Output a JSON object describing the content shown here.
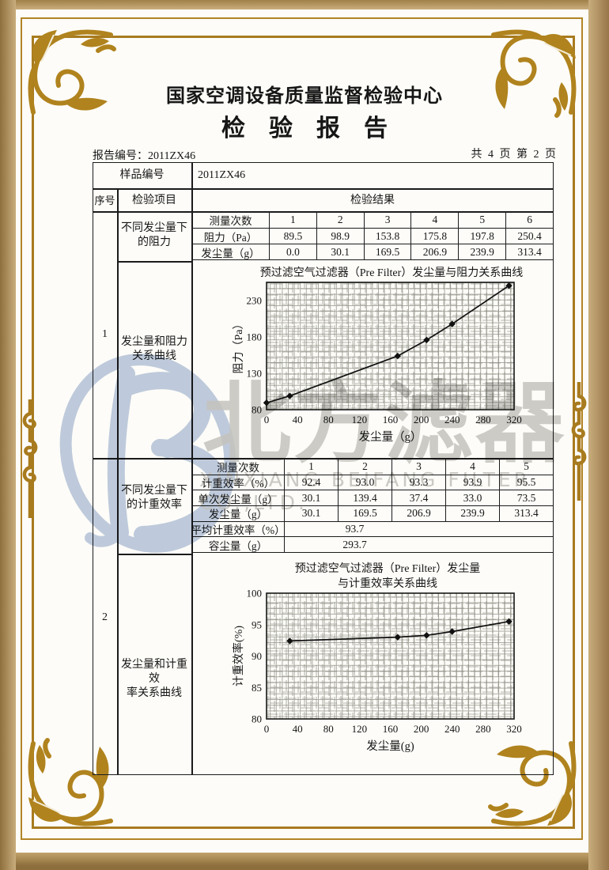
{
  "header": {
    "center_name": "国家空调设备质量监督检验中心",
    "report_title": "检验报告",
    "report_no": "报告编号：2011ZX46",
    "page_info": "共 4 页 第 2 页"
  },
  "sample_row": {
    "label": "样品编号",
    "value": "2011ZX46"
  },
  "columns": {
    "seq": "序号",
    "item": "检验项目",
    "result": "检验结果"
  },
  "section1": {
    "seq": "1",
    "item_top": "不同发尘量下\n的阻力",
    "item_bottom": "发尘量和阻力\n关系曲线",
    "table": {
      "rows": [
        {
          "label": "测量次数",
          "values": [
            "1",
            "2",
            "3",
            "4",
            "5",
            "6"
          ]
        },
        {
          "label": "阻力（Pa）",
          "values": [
            "89.5",
            "98.9",
            "153.8",
            "175.8",
            "197.8",
            "250.4"
          ]
        },
        {
          "label": "发尘量（g）",
          "values": [
            "0.0",
            "30.1",
            "169.5",
            "206.9",
            "239.9",
            "313.4"
          ]
        }
      ]
    }
  },
  "section2": {
    "seq": "2",
    "item_top": "不同发尘量下\n的计重效率",
    "item_bottom": "发尘量和计重效\n率关系曲线",
    "table": {
      "rows": [
        {
          "label": "测量次数",
          "values": [
            "1",
            "2",
            "3",
            "4",
            "5"
          ]
        },
        {
          "label": "计重效率（%）",
          "values": [
            "92.4",
            "93.0",
            "93.3",
            "93.9",
            "95.5"
          ]
        },
        {
          "label": "单次发尘量（g）",
          "values": [
            "30.1",
            "139.4",
            "37.4",
            "33.0",
            "73.5"
          ]
        },
        {
          "label": "发尘量（g）",
          "values": [
            "30.1",
            "169.5",
            "206.9",
            "239.9",
            "313.4"
          ]
        }
      ],
      "summary": [
        {
          "label": "平均计重效率（%）",
          "value": "93.7"
        },
        {
          "label": "容尘量（g）",
          "value": "293.7"
        }
      ]
    }
  },
  "chart_data": [
    {
      "type": "line",
      "title": "预过滤空气过滤器（Pre Filter）发尘量与阻力关系曲线",
      "xlabel": "发尘量（g）",
      "ylabel": "阻力（Pa）",
      "x": [
        0,
        30.1,
        169.5,
        206.9,
        239.9,
        313.4
      ],
      "y": [
        89.5,
        98.9,
        153.8,
        175.8,
        197.8,
        250.4
      ],
      "xticks": [
        0,
        40,
        80,
        120,
        160,
        200,
        240,
        280,
        320
      ],
      "yticks": [
        80,
        130,
        180,
        230
      ],
      "xlim": [
        0,
        320
      ],
      "ylim": [
        80,
        255
      ],
      "grid": "fine-crosshatch",
      "legend": "none"
    },
    {
      "type": "line",
      "title": "预过滤空气过滤器（Pre Filter）发尘量\n与计重效率关系曲线",
      "xlabel": "发尘量(g)",
      "ylabel": "计重效率(%)",
      "x": [
        30.1,
        169.5,
        206.9,
        239.9,
        313.4
      ],
      "y": [
        92.4,
        93.0,
        93.3,
        93.9,
        95.5
      ],
      "xticks": [
        0,
        40,
        80,
        120,
        160,
        200,
        240,
        280,
        320
      ],
      "yticks": [
        80,
        85,
        90,
        95,
        100
      ],
      "xlim": [
        0,
        320
      ],
      "ylim": [
        80,
        100
      ],
      "grid": "fine-crosshatch",
      "legend": "none"
    }
  ],
  "watermark": {
    "logo": "beifang-b-logo",
    "cn": "北方滤器",
    "en": "XINXIANG BEIFANG FILTER CO.,LTD.",
    "logo_color": "#c0cde2",
    "text_color": "#c6c6c3"
  },
  "frame": {
    "gold": "#b0831e",
    "band_dark": "#8d6f3d",
    "band_light": "#c9ad7c"
  }
}
